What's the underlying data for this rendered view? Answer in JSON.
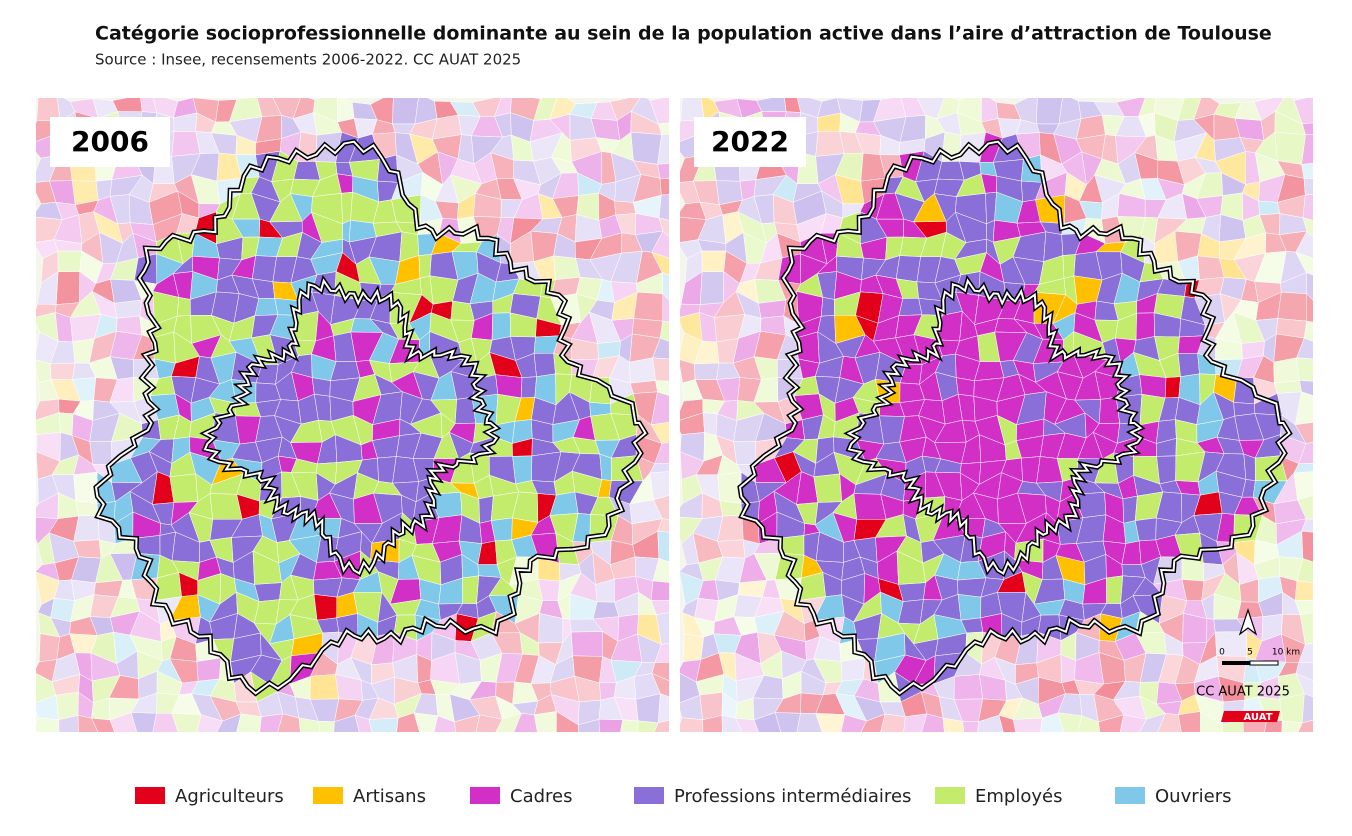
{
  "header": {
    "title": "Catégorie socioprofessionnelle dominante au sein de la population active dans l’aire d’attraction de Toulouse",
    "source": "Source : Insee, recensements 2006-2022. CC AUAT 2025"
  },
  "panels": [
    {
      "label": "2006"
    },
    {
      "label": "2022"
    }
  ],
  "legend": [
    {
      "name": "Agriculteurs",
      "color": "#e3001b"
    },
    {
      "name": "Artisans",
      "color": "#ffc000"
    },
    {
      "name": "Cadres",
      "color": "#d22fc6"
    },
    {
      "name": "Professions intermédiaires",
      "color": "#8b6fd8"
    },
    {
      "name": "Employés",
      "color": "#c3ec6d"
    },
    {
      "name": "Ouvriers",
      "color": "#7fc8ea"
    }
  ],
  "scale": {
    "labels": [
      "0",
      "5",
      "10 km"
    ]
  },
  "credit": "CC AUAT 2025",
  "logo": "AUAT"
}
